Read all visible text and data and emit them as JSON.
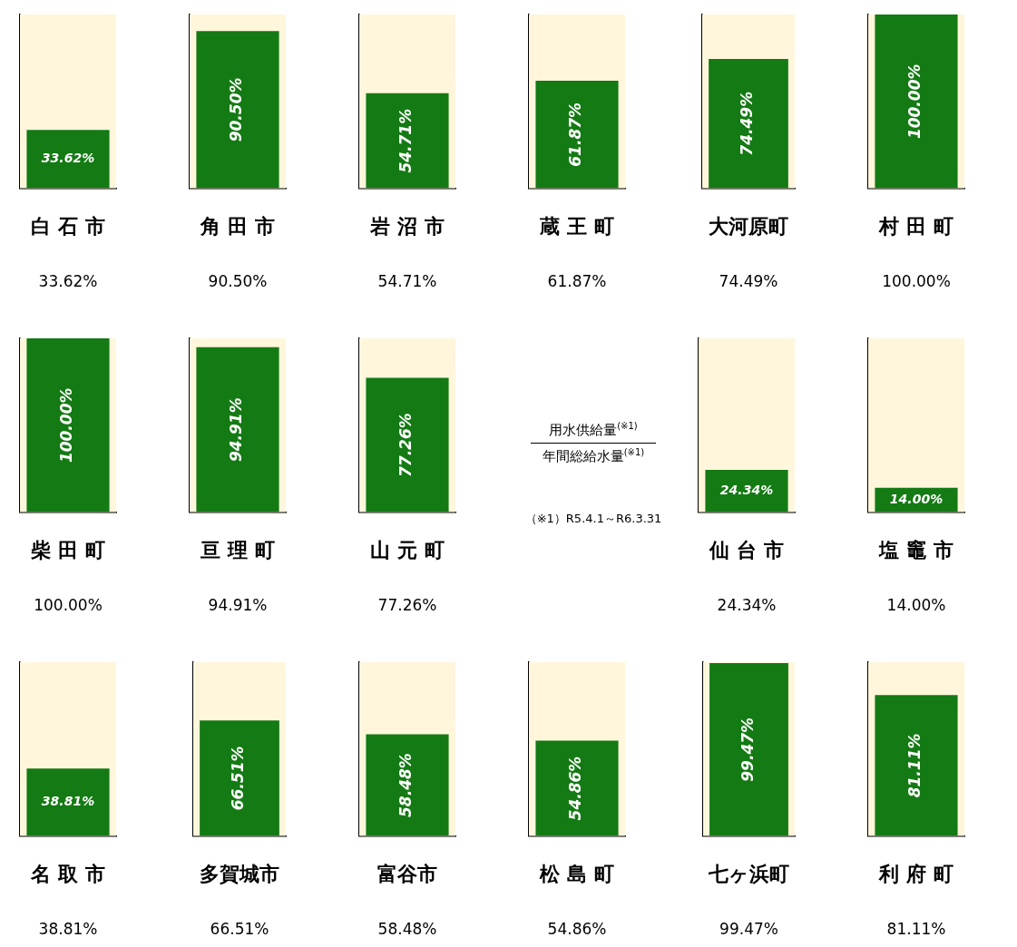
{
  "chart_data": [
    {
      "type": "bar",
      "categories": [
        "白 石 市"
      ],
      "values": [
        33.62
      ],
      "value_labels": [
        "33.62%"
      ],
      "color": "#147a14",
      "ylim": [
        0,
        100
      ],
      "tick_labels": "x",
      "bands": [
        {
          "axis": "y",
          "from": 0,
          "to": 100,
          "color": "#fff6dc"
        }
      ]
    },
    {
      "type": "bar",
      "categories": [
        "角 田 市"
      ],
      "values": [
        90.5
      ],
      "value_labels": [
        "90.50%"
      ],
      "color": "#147a14",
      "ylim": [
        0,
        100
      ],
      "tick_labels": "x",
      "bands": [
        {
          "axis": "y",
          "from": 0,
          "to": 100,
          "color": "#fff6dc"
        }
      ]
    },
    {
      "type": "bar",
      "categories": [
        "岩 沼 市"
      ],
      "values": [
        54.71
      ],
      "value_labels": [
        "54.71%"
      ],
      "color": "#147a14",
      "ylim": [
        0,
        100
      ],
      "tick_labels": "x",
      "bands": [
        {
          "axis": "y",
          "from": 0,
          "to": 100,
          "color": "#fff6dc"
        }
      ]
    },
    {
      "type": "bar",
      "categories": [
        "蔵 王 町"
      ],
      "values": [
        61.87
      ],
      "value_labels": [
        "61.87%"
      ],
      "color": "#147a14",
      "ylim": [
        0,
        100
      ],
      "tick_labels": "x",
      "bands": [
        {
          "axis": "y",
          "from": 0,
          "to": 100,
          "color": "#fff6dc"
        }
      ]
    },
    {
      "type": "bar",
      "categories": [
        "大河原町"
      ],
      "values": [
        74.49
      ],
      "value_labels": [
        "74.49%"
      ],
      "color": "#147a14",
      "ylim": [
        0,
        100
      ],
      "tick_labels": "x",
      "bands": [
        {
          "axis": "y",
          "from": 0,
          "to": 100,
          "color": "#fff6dc"
        }
      ]
    },
    {
      "type": "bar",
      "categories": [
        "村 田 町"
      ],
      "values": [
        100
      ],
      "value_labels": [
        "100.00%"
      ],
      "color": "#147a14",
      "ylim": [
        0,
        100
      ],
      "tick_labels": "x",
      "bands": [
        {
          "axis": "y",
          "from": 0,
          "to": 100,
          "color": "#fff6dc"
        }
      ]
    },
    {
      "type": "bar",
      "categories": [
        "柴 田 町"
      ],
      "values": [
        100
      ],
      "value_labels": [
        "100.00%"
      ],
      "color": "#147a14",
      "ylim": [
        0,
        100
      ],
      "tick_labels": "x",
      "bands": [
        {
          "axis": "y",
          "from": 0,
          "to": 100,
          "color": "#fff6dc"
        }
      ]
    },
    {
      "type": "bar",
      "categories": [
        "亘 理 町"
      ],
      "values": [
        94.91
      ],
      "value_labels": [
        "94.91%"
      ],
      "color": "#147a14",
      "ylim": [
        0,
        100
      ],
      "tick_labels": "x",
      "bands": [
        {
          "axis": "y",
          "from": 0,
          "to": 100,
          "color": "#fff6dc"
        }
      ]
    },
    {
      "type": "bar",
      "categories": [
        "山 元 町"
      ],
      "values": [
        77.26
      ],
      "value_labels": [
        "77.26%"
      ],
      "color": "#147a14",
      "ylim": [
        0,
        100
      ],
      "tick_labels": "x",
      "bands": [
        {
          "axis": "y",
          "from": 0,
          "to": 100,
          "color": "#fff6dc"
        }
      ]
    },
    {
      "type": "other",
      "annotations": [
        "用水供給量$^{(※1)}$",
        "年間総給水量$^{(※1)}$",
        "（※1）R5.4.1～R6.3.31"
      ]
    },
    {
      "type": "bar",
      "categories": [
        "仙 台 市"
      ],
      "values": [
        24.34
      ],
      "value_labels": [
        "24.34%"
      ],
      "color": "#147a14",
      "ylim": [
        0,
        100
      ],
      "tick_labels": "x",
      "bands": [
        {
          "axis": "y",
          "from": 0,
          "to": 100,
          "color": "#fff6dc"
        }
      ]
    },
    {
      "type": "bar",
      "categories": [
        "塩 竈 市"
      ],
      "values": [
        14
      ],
      "value_labels": [
        "14.00%"
      ],
      "color": "#147a14",
      "ylim": [
        0,
        100
      ],
      "tick_labels": "x",
      "bands": [
        {
          "axis": "y",
          "from": 0,
          "to": 100,
          "color": "#fff6dc"
        }
      ]
    },
    {
      "type": "bar",
      "categories": [
        "名 取 市"
      ],
      "values": [
        38.81
      ],
      "value_labels": [
        "38.81%"
      ],
      "color": "#147a14",
      "ylim": [
        0,
        100
      ],
      "tick_labels": "x",
      "bands": [
        {
          "axis": "y",
          "from": 0,
          "to": 100,
          "color": "#fff6dc"
        }
      ]
    },
    {
      "type": "bar",
      "categories": [
        "多賀城市"
      ],
      "values": [
        66.51
      ],
      "value_labels": [
        "66.51%"
      ],
      "color": "#147a14",
      "ylim": [
        0,
        100
      ],
      "tick_labels": "x",
      "bands": [
        {
          "axis": "y",
          "from": 0,
          "to": 100,
          "color": "#fff6dc"
        }
      ]
    },
    {
      "type": "bar",
      "categories": [
        "富谷市"
      ],
      "values": [
        58.48
      ],
      "value_labels": [
        "58.48%"
      ],
      "color": "#147a14",
      "ylim": [
        0,
        100
      ],
      "tick_labels": "x",
      "bands": [
        {
          "axis": "y",
          "from": 0,
          "to": 100,
          "color": "#fff6dc"
        }
      ]
    },
    {
      "type": "bar",
      "categories": [
        "松 島 町"
      ],
      "values": [
        54.86
      ],
      "value_labels": [
        "54.86%"
      ],
      "color": "#147a14",
      "ylim": [
        0,
        100
      ],
      "tick_labels": "x",
      "bands": [
        {
          "axis": "y",
          "from": 0,
          "to": 100,
          "color": "#fff6dc"
        }
      ]
    },
    {
      "type": "bar",
      "categories": [
        "七ヶ浜町"
      ],
      "values": [
        99.47
      ],
      "value_labels": [
        "99.47%"
      ],
      "color": "#147a14",
      "ylim": [
        0,
        100
      ],
      "tick_labels": "x",
      "bands": [
        {
          "axis": "y",
          "from": 0,
          "to": 100,
          "color": "#fff6dc"
        }
      ]
    },
    {
      "type": "bar",
      "categories": [
        "利 府 町"
      ],
      "values": [
        81.11
      ],
      "value_labels": [
        "81.11%"
      ],
      "color": "#147a14",
      "ylim": [
        0,
        100
      ],
      "tick_labels": "x",
      "bands": [
        {
          "axis": "y",
          "from": 0,
          "to": 100,
          "color": "#fff6dc"
        }
      ]
    }
  ]
}
